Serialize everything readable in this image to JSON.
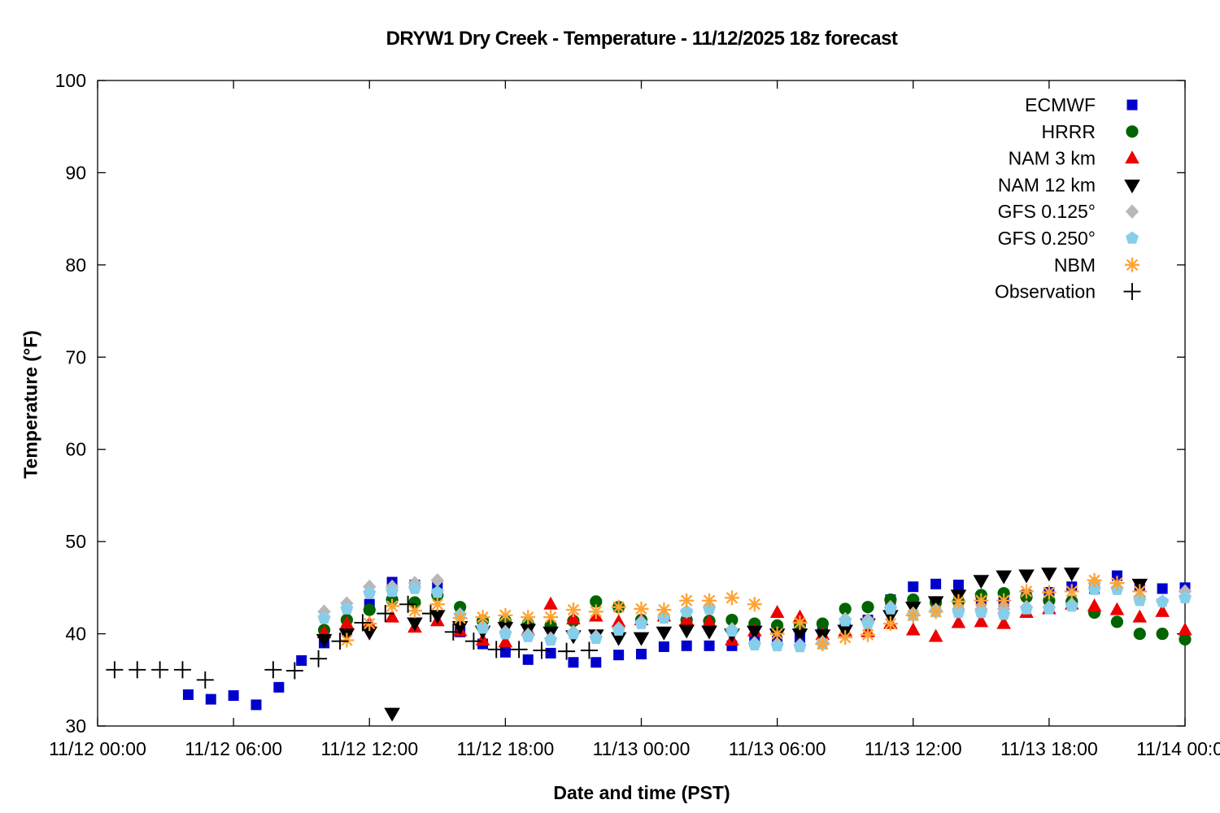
{
  "title": "DRYW1 Dry Creek - Temperature - 11/12/2025 18z forecast",
  "axes": {
    "x_label": "Date and time (PST)",
    "y_label": "Temperature (°F)",
    "y_ticks": [
      30,
      40,
      50,
      60,
      70,
      80,
      90,
      100
    ],
    "x_ticks": [
      {
        "t": 0,
        "label": "11/12 00:00"
      },
      {
        "t": 6,
        "label": "11/12 06:00"
      },
      {
        "t": 12,
        "label": "11/12 12:00"
      },
      {
        "t": 18,
        "label": "11/12 18:00"
      },
      {
        "t": 24,
        "label": "11/13 00:00"
      },
      {
        "t": 30,
        "label": "11/13 06:00"
      },
      {
        "t": 36,
        "label": "11/13 12:00"
      },
      {
        "t": 42,
        "label": "11/13 18:00"
      },
      {
        "t": 48,
        "label": "11/14 00:00"
      }
    ]
  },
  "chart_data": {
    "type": "scatter",
    "title": "DRYW1 Dry Creek - Temperature - 11/12/2025 18z forecast",
    "xlabel": "Date and time (PST)",
    "ylabel": "Temperature (°F)",
    "ylim": [
      30,
      100
    ],
    "x_hours_range": [
      0,
      48
    ],
    "x_units": "hours since 11/12 00:00 PST",
    "grid": false,
    "legend_position": "top-right-inside",
    "series": [
      {
        "name": "ECMWF",
        "marker": "square",
        "color": "#0000cd",
        "points": [
          [
            4,
            33.4
          ],
          [
            5,
            32.9
          ],
          [
            6,
            33.3
          ],
          [
            7,
            32.3
          ],
          [
            8,
            34.2
          ],
          [
            9,
            37.1
          ],
          [
            10,
            39.0
          ],
          [
            11,
            40.4
          ],
          [
            12,
            43.2
          ],
          [
            13,
            45.6
          ],
          [
            14,
            45.3
          ],
          [
            15,
            45.3
          ],
          [
            16,
            40.2
          ],
          [
            17,
            38.9
          ],
          [
            18,
            38.0
          ],
          [
            19,
            37.2
          ],
          [
            20,
            37.9
          ],
          [
            21,
            36.9
          ],
          [
            22,
            36.9
          ],
          [
            23,
            37.7
          ],
          [
            24,
            37.8
          ],
          [
            25,
            38.6
          ],
          [
            26,
            38.7
          ],
          [
            27,
            38.7
          ],
          [
            28,
            38.7
          ],
          [
            29,
            39.4
          ],
          [
            30,
            39.2
          ],
          [
            31,
            39.6
          ],
          [
            32,
            40.5
          ],
          [
            33,
            41.2
          ],
          [
            34,
            41.5
          ],
          [
            35,
            43.7
          ],
          [
            36,
            45.1
          ],
          [
            37,
            45.4
          ],
          [
            38,
            45.3
          ],
          [
            39,
            43.6
          ],
          [
            40,
            43.5
          ],
          [
            41,
            44.2
          ],
          [
            42,
            44.5
          ],
          [
            43,
            45.1
          ],
          [
            44,
            44.9
          ],
          [
            45,
            46.3
          ],
          [
            46,
            45.2
          ],
          [
            47,
            44.9
          ],
          [
            48,
            45.0
          ]
        ]
      },
      {
        "name": "HRRR",
        "marker": "circle",
        "color": "#006400",
        "points": [
          [
            10,
            40.4
          ],
          [
            11,
            41.5
          ],
          [
            12,
            42.6
          ],
          [
            13,
            43.7
          ],
          [
            14,
            43.4
          ],
          [
            15,
            44.2
          ],
          [
            16,
            42.9
          ],
          [
            17,
            41.4
          ],
          [
            18,
            41.4
          ],
          [
            19,
            41.1
          ],
          [
            20,
            40.9
          ],
          [
            21,
            41.4
          ],
          [
            22,
            43.5
          ],
          [
            23,
            42.9
          ],
          [
            24,
            41.5
          ],
          [
            25,
            41.8
          ],
          [
            26,
            41.5
          ],
          [
            27,
            41.4
          ],
          [
            28,
            41.5
          ],
          [
            29,
            41.1
          ],
          [
            30,
            40.9
          ],
          [
            31,
            40.9
          ],
          [
            32,
            41.1
          ],
          [
            33,
            42.7
          ],
          [
            34,
            42.9
          ],
          [
            35,
            43.7
          ],
          [
            36,
            43.7
          ],
          [
            37,
            43.4
          ],
          [
            38,
            43.5
          ],
          [
            39,
            44.2
          ],
          [
            40,
            44.4
          ],
          [
            41,
            44.0
          ],
          [
            42,
            43.6
          ],
          [
            43,
            43.5
          ],
          [
            44,
            42.3
          ],
          [
            45,
            41.3
          ],
          [
            46,
            40.0
          ],
          [
            47,
            40.0
          ],
          [
            48,
            39.4
          ]
        ]
      },
      {
        "name": "NAM 3 km",
        "marker": "triangle-up",
        "color": "#ee0000",
        "points": [
          [
            10,
            40.1
          ],
          [
            11,
            41.1
          ],
          [
            12,
            41.1
          ],
          [
            13,
            41.8
          ],
          [
            14,
            40.7
          ],
          [
            15,
            41.4
          ],
          [
            16,
            40.3
          ],
          [
            17,
            39.3
          ],
          [
            18,
            39.1
          ],
          [
            19,
            40.4
          ],
          [
            20,
            43.2
          ],
          [
            21,
            41.6
          ],
          [
            22,
            41.9
          ],
          [
            23,
            41.3
          ],
          [
            24,
            41.5
          ],
          [
            25,
            41.9
          ],
          [
            26,
            41.5
          ],
          [
            27,
            41.3
          ],
          [
            28,
            39.3
          ],
          [
            29,
            40.3
          ],
          [
            30,
            42.3
          ],
          [
            31,
            41.8
          ],
          [
            32,
            39.9
          ],
          [
            33,
            40.3
          ],
          [
            34,
            40.2
          ],
          [
            35,
            41.1
          ],
          [
            36,
            40.4
          ],
          [
            37,
            39.7
          ],
          [
            38,
            41.2
          ],
          [
            39,
            41.3
          ],
          [
            40,
            41.1
          ],
          [
            41,
            42.3
          ],
          [
            42,
            42.7
          ],
          [
            43,
            43.2
          ],
          [
            44,
            43.0
          ],
          [
            45,
            42.6
          ],
          [
            46,
            41.8
          ],
          [
            47,
            42.4
          ],
          [
            48,
            40.4
          ]
        ]
      },
      {
        "name": "NAM 12 km",
        "marker": "triangle-down",
        "color": "#000000",
        "points": [
          [
            10,
            39.4
          ],
          [
            11,
            40.0
          ],
          [
            12,
            40.2
          ],
          [
            13,
            31.4
          ],
          [
            14,
            41.2
          ],
          [
            15,
            42.0
          ],
          [
            16,
            40.8
          ],
          [
            17,
            40.3
          ],
          [
            18,
            40.7
          ],
          [
            19,
            40.5
          ],
          [
            20,
            40.2
          ],
          [
            21,
            39.8
          ],
          [
            22,
            39.9
          ],
          [
            23,
            39.6
          ],
          [
            24,
            39.6
          ],
          [
            25,
            40.2
          ],
          [
            26,
            40.4
          ],
          [
            27,
            40.3
          ],
          [
            28,
            40.0
          ],
          [
            29,
            40.3
          ],
          [
            30,
            40.0
          ],
          [
            31,
            40.0
          ],
          [
            32,
            39.9
          ],
          [
            33,
            40.4
          ],
          [
            34,
            41.1
          ],
          [
            35,
            42.0
          ],
          [
            36,
            42.9
          ],
          [
            37,
            43.5
          ],
          [
            38,
            44.2
          ],
          [
            39,
            45.8
          ],
          [
            40,
            46.3
          ],
          [
            41,
            46.4
          ],
          [
            42,
            46.6
          ],
          [
            43,
            46.6
          ],
          [
            46,
            45.4
          ]
        ]
      },
      {
        "name": "GFS 0.125°",
        "marker": "diamond",
        "color": "#b8b8b8",
        "points": [
          [
            10,
            42.4
          ],
          [
            11,
            43.3
          ],
          [
            12,
            45.1
          ],
          [
            13,
            45.1
          ],
          [
            14,
            45.5
          ],
          [
            15,
            45.8
          ],
          [
            16,
            42.1
          ],
          [
            17,
            40.8
          ],
          [
            18,
            40.2
          ],
          [
            19,
            39.9
          ],
          [
            20,
            39.5
          ],
          [
            21,
            40.2
          ],
          [
            22,
            39.7
          ],
          [
            23,
            40.6
          ],
          [
            24,
            41.3
          ],
          [
            25,
            41.9
          ],
          [
            26,
            42.4
          ],
          [
            27,
            42.9
          ],
          [
            28,
            40.5
          ],
          [
            29,
            39.0
          ],
          [
            30,
            38.9
          ],
          [
            31,
            38.8
          ],
          [
            32,
            39.1
          ],
          [
            33,
            41.6
          ],
          [
            34,
            41.5
          ],
          [
            35,
            42.9
          ],
          [
            36,
            42.2
          ],
          [
            37,
            42.6
          ],
          [
            38,
            42.7
          ],
          [
            39,
            42.7
          ],
          [
            40,
            42.7
          ],
          [
            41,
            42.9
          ],
          [
            42,
            42.9
          ],
          [
            43,
            43.2
          ],
          [
            44,
            45.5
          ],
          [
            45,
            45.0
          ],
          [
            46,
            44.0
          ],
          [
            47,
            43.5
          ],
          [
            48,
            44.6
          ]
        ]
      },
      {
        "name": "GFS 0.250°",
        "marker": "pentagon",
        "color": "#87ceeb",
        "points": [
          [
            10,
            41.7
          ],
          [
            11,
            42.7
          ],
          [
            12,
            44.4
          ],
          [
            13,
            44.6
          ],
          [
            14,
            44.9
          ],
          [
            15,
            44.5
          ],
          [
            16,
            42.0
          ],
          [
            17,
            40.6
          ],
          [
            18,
            40.0
          ],
          [
            19,
            39.7
          ],
          [
            20,
            39.3
          ],
          [
            21,
            40.0
          ],
          [
            22,
            39.5
          ],
          [
            23,
            40.4
          ],
          [
            24,
            41.1
          ],
          [
            25,
            41.7
          ],
          [
            26,
            42.4
          ],
          [
            27,
            42.7
          ],
          [
            28,
            40.3
          ],
          [
            29,
            38.8
          ],
          [
            30,
            38.7
          ],
          [
            31,
            38.6
          ],
          [
            32,
            38.9
          ],
          [
            33,
            41.4
          ],
          [
            34,
            41.1
          ],
          [
            35,
            42.7
          ],
          [
            36,
            42.0
          ],
          [
            37,
            42.4
          ],
          [
            38,
            42.3
          ],
          [
            39,
            42.3
          ],
          [
            40,
            42.1
          ],
          [
            41,
            42.7
          ],
          [
            42,
            42.7
          ],
          [
            43,
            43.0
          ],
          [
            44,
            44.8
          ],
          [
            45,
            44.8
          ],
          [
            46,
            43.6
          ],
          [
            47,
            43.5
          ],
          [
            48,
            43.9
          ]
        ]
      },
      {
        "name": "NBM",
        "marker": "asterisk",
        "color": "#ffa333",
        "points": [
          [
            11,
            39.3
          ],
          [
            12,
            41.1
          ],
          [
            13,
            43.0
          ],
          [
            14,
            42.5
          ],
          [
            15,
            43.2
          ],
          [
            16,
            41.7
          ],
          [
            17,
            41.8
          ],
          [
            18,
            42.0
          ],
          [
            19,
            41.8
          ],
          [
            20,
            41.8
          ],
          [
            21,
            42.6
          ],
          [
            22,
            42.4
          ],
          [
            23,
            42.9
          ],
          [
            24,
            42.7
          ],
          [
            25,
            42.6
          ],
          [
            26,
            43.6
          ],
          [
            27,
            43.6
          ],
          [
            28,
            43.9
          ],
          [
            29,
            43.2
          ],
          [
            30,
            40.0
          ],
          [
            31,
            41.2
          ],
          [
            32,
            38.9
          ],
          [
            33,
            39.6
          ],
          [
            34,
            39.9
          ],
          [
            35,
            41.1
          ],
          [
            36,
            42.0
          ],
          [
            37,
            42.4
          ],
          [
            38,
            43.5
          ],
          [
            39,
            43.6
          ],
          [
            40,
            43.6
          ],
          [
            41,
            44.6
          ],
          [
            42,
            44.5
          ],
          [
            43,
            44.6
          ],
          [
            44,
            45.8
          ],
          [
            45,
            45.5
          ],
          [
            46,
            44.6
          ]
        ]
      },
      {
        "name": "Observation",
        "marker": "plus",
        "color": "#000000",
        "points": [
          [
            0.75,
            36.1
          ],
          [
            1.75,
            36.1
          ],
          [
            2.75,
            36.1
          ],
          [
            3.75,
            36.1
          ],
          [
            4.75,
            35.0
          ],
          [
            7.75,
            36.1
          ],
          [
            8.7,
            36.0
          ],
          [
            9.75,
            37.3
          ],
          [
            10.7,
            39.2
          ],
          [
            11.7,
            41.2
          ],
          [
            12.7,
            42.2
          ],
          [
            13.7,
            43.2
          ],
          [
            14.7,
            42.2
          ],
          [
            15.7,
            40.2
          ],
          [
            16.6,
            39.2
          ],
          [
            17.6,
            38.3
          ],
          [
            18.6,
            38.3
          ],
          [
            19.6,
            38.2
          ],
          [
            20.7,
            38.1
          ],
          [
            21.7,
            38.2
          ]
        ]
      }
    ]
  }
}
